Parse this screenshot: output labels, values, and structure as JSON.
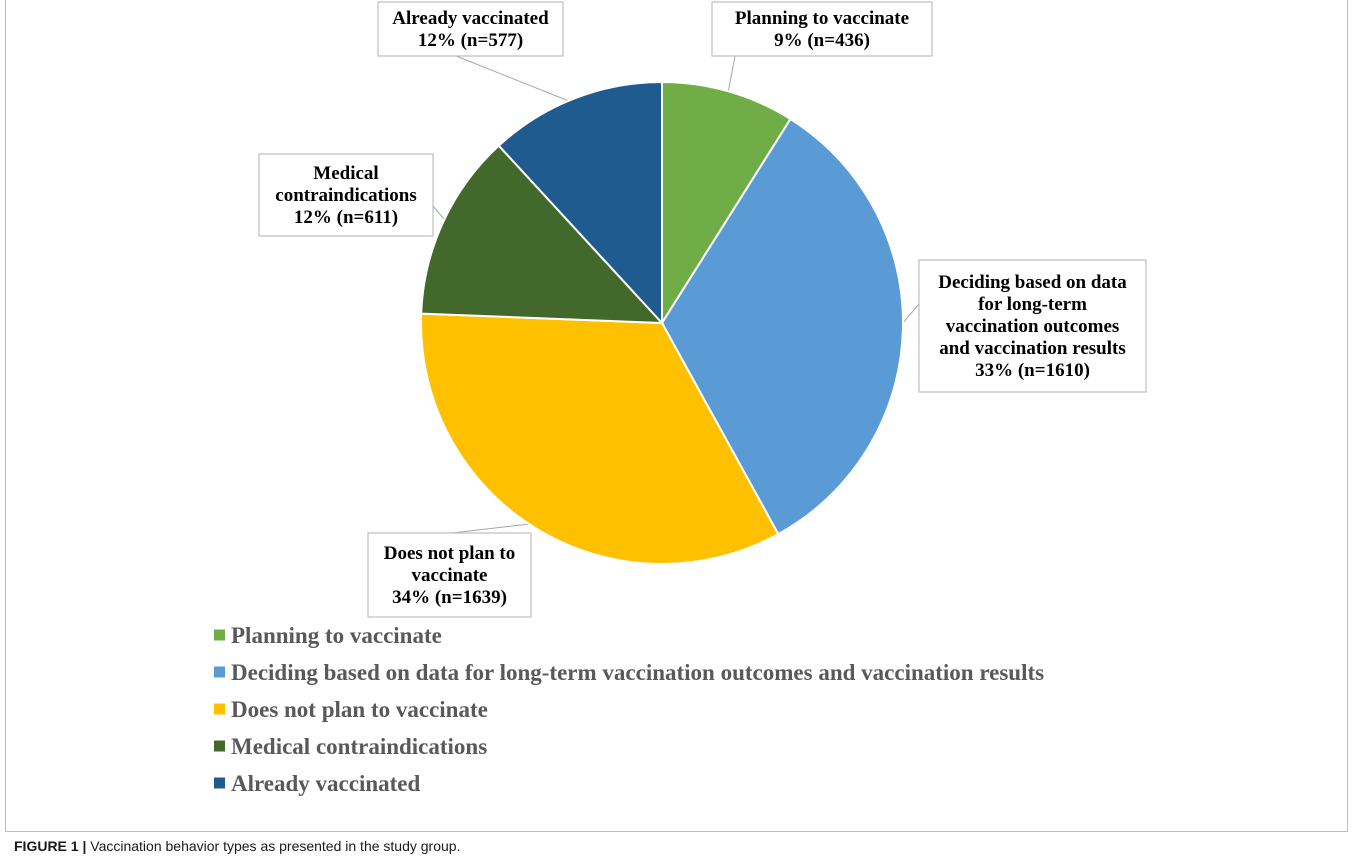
{
  "caption": {
    "label": "FIGURE 1 |",
    "text": "Vaccination behavior types as presented in the study group."
  },
  "chart_data": {
    "type": "pie",
    "title": "",
    "slices": [
      {
        "name": "Planning to vaccinate",
        "value": 436,
        "percent_label": "9%",
        "color": "#70ad47",
        "label_lines": [
          "Planning to vaccinate",
          "9% (n=436)"
        ]
      },
      {
        "name": "Deciding based on data for long-term vaccination outcomes and vaccination results",
        "value": 1610,
        "percent_label": "33%",
        "color": "#5b9bd5",
        "label_lines": [
          "Deciding based on data",
          "for long-term",
          "vaccination outcomes",
          "and vaccination results",
          "33% (n=1610)"
        ]
      },
      {
        "name": "Does not plan to vaccinate",
        "value": 1639,
        "percent_label": "34%",
        "color": "#ffc000",
        "label_lines": [
          "Does not plan to",
          "vaccinate",
          "34% (n=1639)"
        ]
      },
      {
        "name": "Medical contraindications",
        "value": 611,
        "percent_label": "12%",
        "color": "#43682b",
        "label_lines": [
          "Medical",
          "contraindications",
          "12% (n=611)"
        ]
      },
      {
        "name": "Already vaccinated",
        "value": 577,
        "percent_label": "12%",
        "color": "#1f5b8f",
        "label_lines": [
          "Already vaccinated",
          "12% (n=577)"
        ]
      }
    ],
    "start_angle": "12 o'clock",
    "direction": "clockwise",
    "legend_position": "bottom"
  }
}
